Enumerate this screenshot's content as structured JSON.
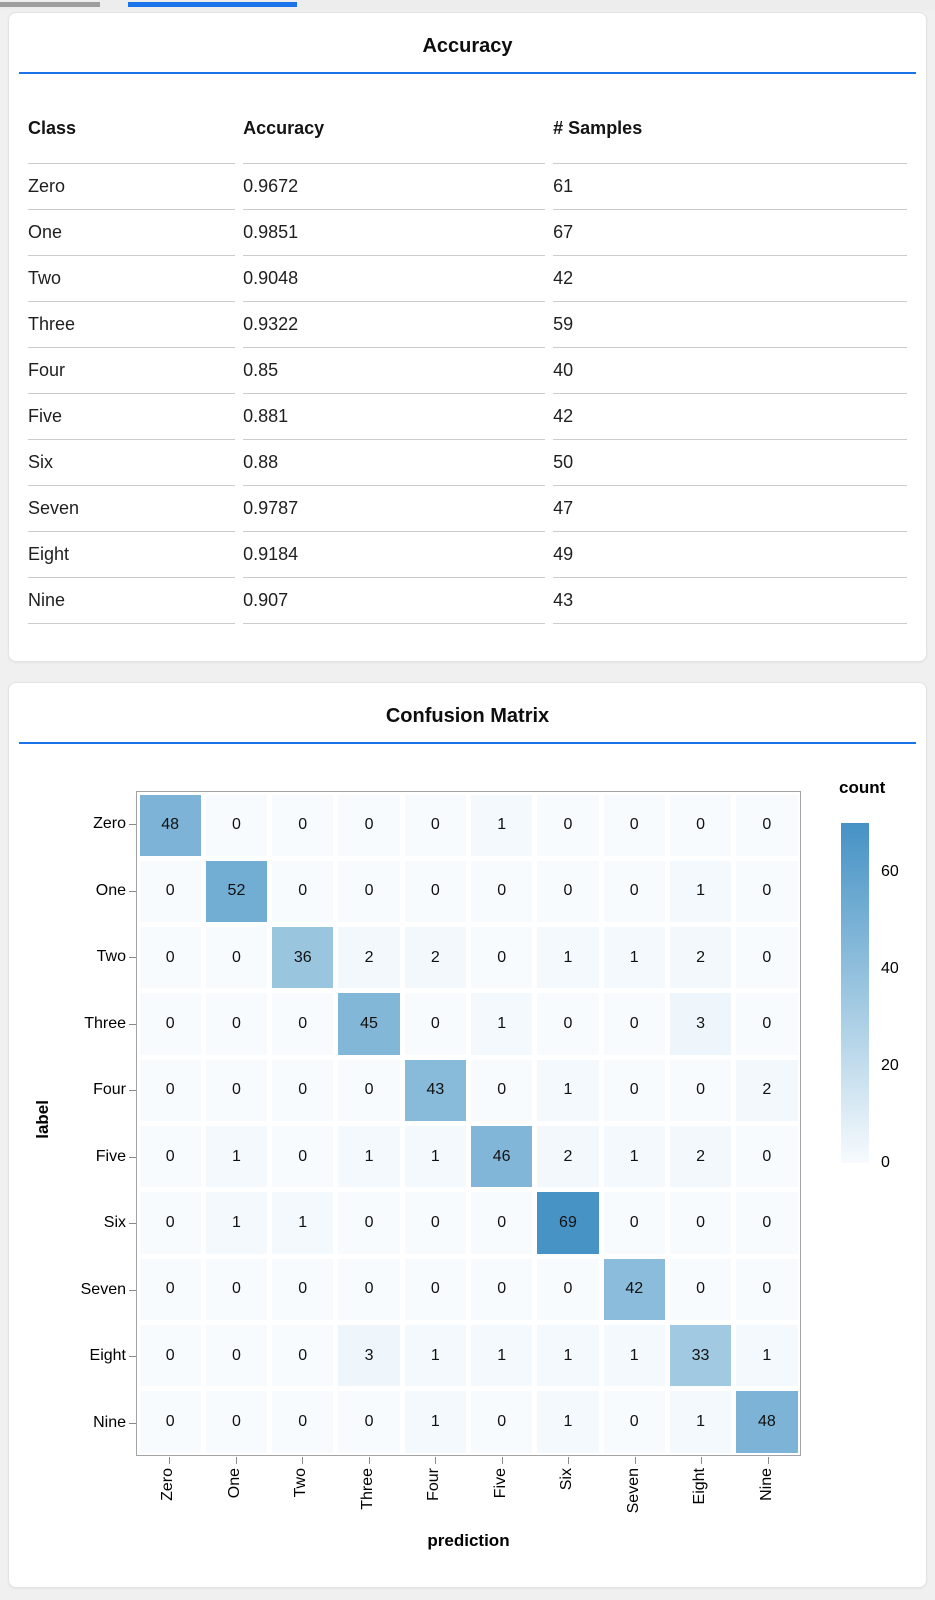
{
  "ui": {
    "top_bars": {
      "inactive_color": "#9d9d9d",
      "active_color": "#1a73e8"
    },
    "accent_color": "#1a73e8"
  },
  "accuracy_panel": {
    "title": "Accuracy",
    "columns": [
      "Class",
      "Accuracy",
      "# Samples"
    ],
    "rows": [
      [
        "Zero",
        "0.9672",
        "61"
      ],
      [
        "One",
        "0.9851",
        "67"
      ],
      [
        "Two",
        "0.9048",
        "42"
      ],
      [
        "Three",
        "0.9322",
        "59"
      ],
      [
        "Four",
        "0.85",
        "40"
      ],
      [
        "Five",
        "0.881",
        "42"
      ],
      [
        "Six",
        "0.88",
        "50"
      ],
      [
        "Seven",
        "0.9787",
        "47"
      ],
      [
        "Eight",
        "0.9184",
        "49"
      ],
      [
        "Nine",
        "0.907",
        "43"
      ]
    ]
  },
  "confusion_panel": {
    "title": "Confusion Matrix",
    "xlabel": "prediction",
    "ylabel": "label",
    "classes": [
      "Zero",
      "One",
      "Two",
      "Three",
      "Four",
      "Five",
      "Six",
      "Seven",
      "Eight",
      "Nine"
    ],
    "matrix": [
      [
        48,
        0,
        0,
        0,
        0,
        1,
        0,
        0,
        0,
        0
      ],
      [
        0,
        52,
        0,
        0,
        0,
        0,
        0,
        0,
        1,
        0
      ],
      [
        0,
        0,
        36,
        2,
        2,
        0,
        1,
        1,
        2,
        0
      ],
      [
        0,
        0,
        0,
        45,
        0,
        1,
        0,
        0,
        3,
        0
      ],
      [
        0,
        0,
        0,
        0,
        43,
        0,
        1,
        0,
        0,
        2
      ],
      [
        0,
        1,
        0,
        1,
        1,
        46,
        2,
        1,
        2,
        0
      ],
      [
        0,
        1,
        1,
        0,
        0,
        0,
        69,
        0,
        0,
        0
      ],
      [
        0,
        0,
        0,
        0,
        0,
        0,
        0,
        42,
        0,
        0
      ],
      [
        0,
        0,
        0,
        3,
        1,
        1,
        1,
        1,
        33,
        1
      ],
      [
        0,
        0,
        0,
        0,
        1,
        0,
        1,
        0,
        1,
        48
      ]
    ],
    "legend": {
      "title": "count",
      "ticks": [
        60,
        40,
        20,
        0
      ]
    },
    "scale": {
      "domain": [
        0,
        70
      ],
      "stops": [
        [
          0,
          "#f7fbfe"
        ],
        [
          35,
          "#9cc6e0"
        ],
        [
          70,
          "#4592c5"
        ]
      ]
    }
  },
  "chart_data": [
    {
      "type": "table",
      "title": "Accuracy",
      "columns": [
        "Class",
        "Accuracy",
        "# Samples"
      ],
      "rows": [
        [
          "Zero",
          "0.9672",
          "61"
        ],
        [
          "One",
          "0.9851",
          "67"
        ],
        [
          "Two",
          "0.9048",
          "42"
        ],
        [
          "Three",
          "0.9322",
          "59"
        ],
        [
          "Four",
          "0.85",
          "40"
        ],
        [
          "Five",
          "0.881",
          "42"
        ],
        [
          "Six",
          "0.88",
          "50"
        ],
        [
          "Seven",
          "0.9787",
          "47"
        ],
        [
          "Eight",
          "0.9184",
          "49"
        ],
        [
          "Nine",
          "0.907",
          "43"
        ]
      ]
    },
    {
      "type": "heatmap",
      "title": "Confusion Matrix",
      "xlabel": "prediction",
      "ylabel": "label",
      "x_categories": [
        "Zero",
        "One",
        "Two",
        "Three",
        "Four",
        "Five",
        "Six",
        "Seven",
        "Eight",
        "Nine"
      ],
      "y_categories": [
        "Zero",
        "One",
        "Two",
        "Three",
        "Four",
        "Five",
        "Six",
        "Seven",
        "Eight",
        "Nine"
      ],
      "values": [
        [
          48,
          0,
          0,
          0,
          0,
          1,
          0,
          0,
          0,
          0
        ],
        [
          0,
          52,
          0,
          0,
          0,
          0,
          0,
          0,
          1,
          0
        ],
        [
          0,
          0,
          36,
          2,
          2,
          0,
          1,
          1,
          2,
          0
        ],
        [
          0,
          0,
          0,
          45,
          0,
          1,
          0,
          0,
          3,
          0
        ],
        [
          0,
          0,
          0,
          0,
          43,
          0,
          1,
          0,
          0,
          2
        ],
        [
          0,
          1,
          0,
          1,
          1,
          46,
          2,
          1,
          2,
          0
        ],
        [
          0,
          1,
          1,
          0,
          0,
          0,
          69,
          0,
          0,
          0
        ],
        [
          0,
          0,
          0,
          0,
          0,
          0,
          0,
          42,
          0,
          0
        ],
        [
          0,
          0,
          0,
          3,
          1,
          1,
          1,
          1,
          33,
          1
        ],
        [
          0,
          0,
          0,
          0,
          1,
          0,
          1,
          0,
          1,
          48
        ]
      ],
      "legend": {
        "title": "count",
        "position": "right",
        "ticks": [
          60,
          40,
          20,
          0
        ]
      },
      "color_domain": [
        0,
        70
      ],
      "color_range": [
        "#f7fbfe",
        "#4592c5"
      ],
      "grid": false
    }
  ]
}
